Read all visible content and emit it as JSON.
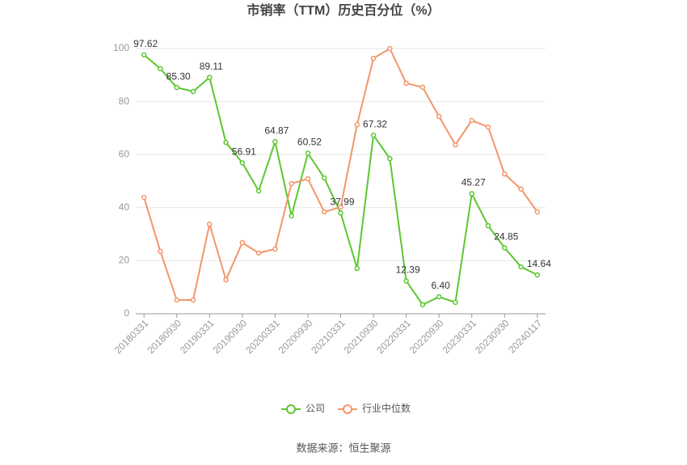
{
  "chart_data": {
    "type": "line",
    "title": "市销率（TTM）历史百分位（%）",
    "source": "数据来源：恒生聚源",
    "categories": [
      "20180331",
      null,
      "20180930",
      null,
      "20190331",
      null,
      "20190930",
      null,
      "20200331",
      null,
      "20200930",
      null,
      "20210331",
      null,
      "20210930",
      null,
      "20220331",
      null,
      "20220930",
      null,
      "20230331",
      null,
      "20230930",
      null,
      "20240117"
    ],
    "ylim": [
      0,
      100
    ],
    "yticks": [
      0,
      20,
      40,
      60,
      80,
      100
    ],
    "grid": true,
    "legend": "bottom",
    "series": [
      {
        "name": "公司",
        "color": "#5cc730",
        "values": [
          97.62,
          92.4,
          85.3,
          83.8,
          89.11,
          64.6,
          56.91,
          46.3,
          64.87,
          36.9,
          60.52,
          51.2,
          37.99,
          17.1,
          67.32,
          58.5,
          12.39,
          3.4,
          6.4,
          4.3,
          45.27,
          33.2,
          24.85,
          17.7,
          14.64
        ],
        "value_labels": [
          "97.62",
          null,
          "85.30",
          null,
          "89.11",
          null,
          "56.91",
          null,
          "64.87",
          null,
          "60.52",
          null,
          "37.99",
          null,
          "67.32",
          null,
          "12.39",
          null,
          "6.40",
          null,
          "45.27",
          null,
          "24.85",
          null,
          "14.64"
        ]
      },
      {
        "name": "行业中位数",
        "color": "#f4956a",
        "values": [
          43.9,
          23.5,
          5.2,
          5.2,
          33.8,
          12.8,
          26.8,
          22.9,
          24.4,
          49.1,
          50.9,
          38.4,
          40.2,
          71.3,
          96.3,
          100,
          86.9,
          85.4,
          74.4,
          63.7,
          72.9,
          70.4,
          52.7,
          47,
          38.4
        ]
      }
    ]
  }
}
